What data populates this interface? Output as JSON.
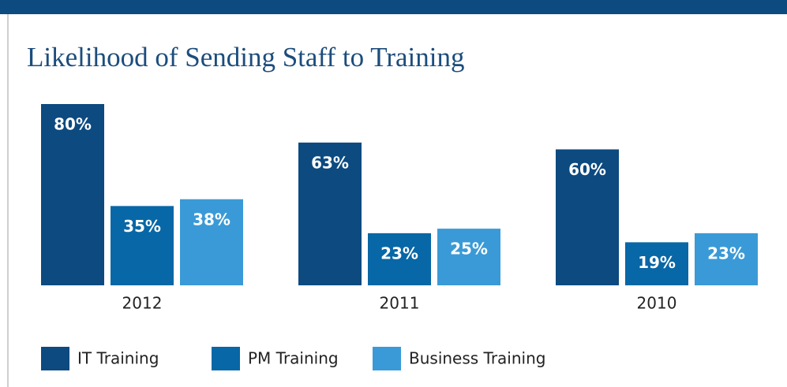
{
  "chart_data": {
    "type": "bar",
    "title": "Likelihood of Sending Staff to Training",
    "categories": [
      "2012",
      "2011",
      "2010"
    ],
    "series": [
      {
        "name": "IT Training",
        "color": "#0c4a80",
        "values": [
          80,
          63,
          60
        ],
        "value_labels": [
          "80%",
          "63%",
          "60%"
        ]
      },
      {
        "name": "PM Training",
        "color": "#0867a6",
        "values": [
          35,
          23,
          19
        ],
        "value_labels": [
          "35%",
          "23%",
          "19%"
        ]
      },
      {
        "name": "Business Training",
        "color": "#3a9ad7",
        "values": [
          38,
          25,
          23
        ],
        "value_labels": [
          "38%",
          "25%",
          "23%"
        ]
      }
    ]
  }
}
